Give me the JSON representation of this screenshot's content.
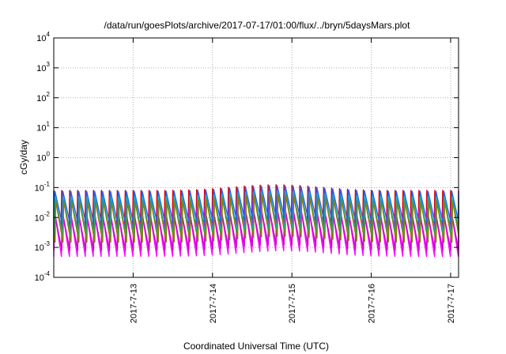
{
  "chart_data": {
    "type": "line",
    "title": "/data/run/goesPlots/archive/2017-07-17/01:00/flux/../bryn/5daysMars.plot",
    "xlabel": "Coordinated Universal Time (UTC)",
    "ylabel": "cGy/day",
    "yscale": "log",
    "ylim": [
      0.0001,
      10000
    ],
    "xlim": [
      12.0,
      17.1
    ],
    "grid": true,
    "legend": "none",
    "y_ticks": [
      {
        "value": 0.0001,
        "base": "10",
        "exp": "-4"
      },
      {
        "value": 0.001,
        "base": "10",
        "exp": "-3"
      },
      {
        "value": 0.01,
        "base": "10",
        "exp": "-2"
      },
      {
        "value": 0.1,
        "base": "10",
        "exp": "-1"
      },
      {
        "value": 1,
        "base": "10",
        "exp": "0"
      },
      {
        "value": 10,
        "base": "10",
        "exp": "1"
      },
      {
        "value": 100,
        "base": "10",
        "exp": "2"
      },
      {
        "value": 1000,
        "base": "10",
        "exp": "3"
      },
      {
        "value": 10000,
        "base": "10",
        "exp": "4"
      }
    ],
    "x_ticks": [
      {
        "value": 13,
        "label": "2017-7-13"
      },
      {
        "value": 14,
        "label": "2017-7-14"
      },
      {
        "value": 15,
        "label": "2017-7-15"
      },
      {
        "value": 16,
        "label": "2017-7-16"
      },
      {
        "value": 17,
        "label": "2017-7-17"
      }
    ],
    "series": [
      {
        "color": "#e0000a",
        "peak": 0.08,
        "trough": 0.0045
      },
      {
        "color": "#ff00ff",
        "peak": 0.02,
        "trough": 0.0005
      },
      {
        "color": "#cc00cc",
        "peak": 0.015,
        "trough": 0.0008
      },
      {
        "color": "#2060ff",
        "peak": 0.075,
        "trough": 0.006
      },
      {
        "color": "#00b8b8",
        "peak": 0.05,
        "trough": 0.0025
      },
      {
        "color": "#808000",
        "peak": 0.035,
        "trough": 0.0015
      }
    ]
  }
}
